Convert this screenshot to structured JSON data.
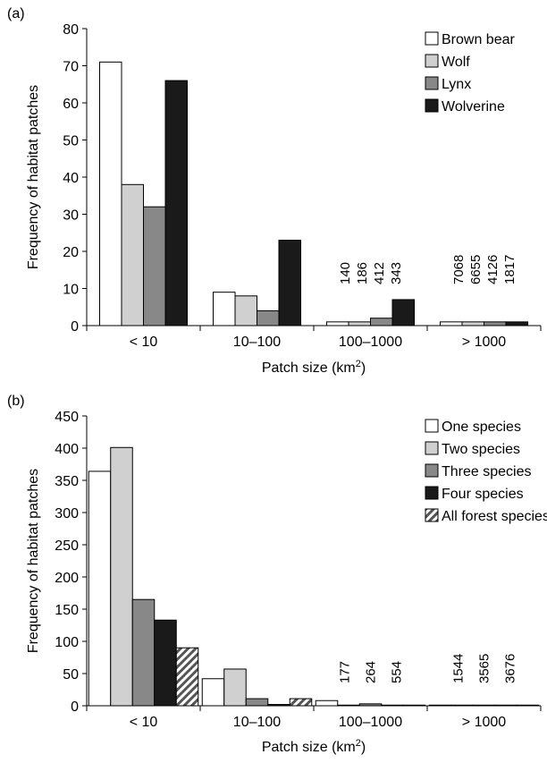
{
  "chart_data": [
    {
      "type": "bar",
      "panel_label": "(a)",
      "categories": [
        "< 10",
        "10–100",
        "100–1000",
        "> 1000"
      ],
      "series": [
        {
          "name": "Brown bear",
          "values": [
            71,
            9,
            1,
            1
          ],
          "color": "#ffffff"
        },
        {
          "name": "Wolf",
          "values": [
            38,
            8,
            1,
            1
          ],
          "color": "#d0d0d0"
        },
        {
          "name": "Lynx",
          "values": [
            32,
            4,
            2,
            1
          ],
          "color": "#888888"
        },
        {
          "name": "Wolverine",
          "values": [
            66,
            23,
            7,
            1
          ],
          "color": "#1a1a1a"
        }
      ],
      "ylim": [
        0,
        80
      ],
      "yticks": [
        0,
        10,
        20,
        30,
        40,
        50,
        60,
        70,
        80
      ],
      "ylabel": "Frequency of habitat patches",
      "xlabel": "Patch size (km",
      "xlabel_sup": "2",
      "xlabel_end": ")",
      "legend_position": "top-right",
      "annotations": [
        {
          "category": 2,
          "labels": [
            "140",
            "186",
            "412",
            "343"
          ]
        },
        {
          "category": 3,
          "labels": [
            "7068",
            "6655",
            "4126",
            "1817"
          ]
        }
      ]
    },
    {
      "type": "bar",
      "panel_label": "(b)",
      "categories": [
        "< 10",
        "10–100",
        "100–1000",
        "> 1000"
      ],
      "series": [
        {
          "name": "One species",
          "values": [
            364,
            42,
            8,
            1
          ],
          "color": "#ffffff"
        },
        {
          "name": "Two species",
          "values": [
            401,
            57,
            1,
            1
          ],
          "color": "#d0d0d0"
        },
        {
          "name": "Three species",
          "values": [
            165,
            11,
            3,
            1
          ],
          "color": "#888888"
        },
        {
          "name": "Four species",
          "values": [
            133,
            2,
            1,
            1
          ],
          "color": "#1a1a1a"
        },
        {
          "name": "All forest species",
          "values": [
            90,
            11,
            1,
            1
          ],
          "color": "hatched"
        }
      ],
      "ylim": [
        0,
        450
      ],
      "yticks": [
        0,
        50,
        100,
        150,
        200,
        250,
        300,
        350,
        400,
        450
      ],
      "ylabel": "Frequency of habitat patches",
      "xlabel": "Patch size (km",
      "xlabel_sup": "2",
      "xlabel_end": ")",
      "legend_position": "top-right",
      "annotations": [
        {
          "category": 2,
          "labels": [
            "177",
            "264",
            "554"
          ]
        },
        {
          "category": 3,
          "labels": [
            "1544",
            "3565",
            "3676"
          ]
        }
      ]
    }
  ]
}
